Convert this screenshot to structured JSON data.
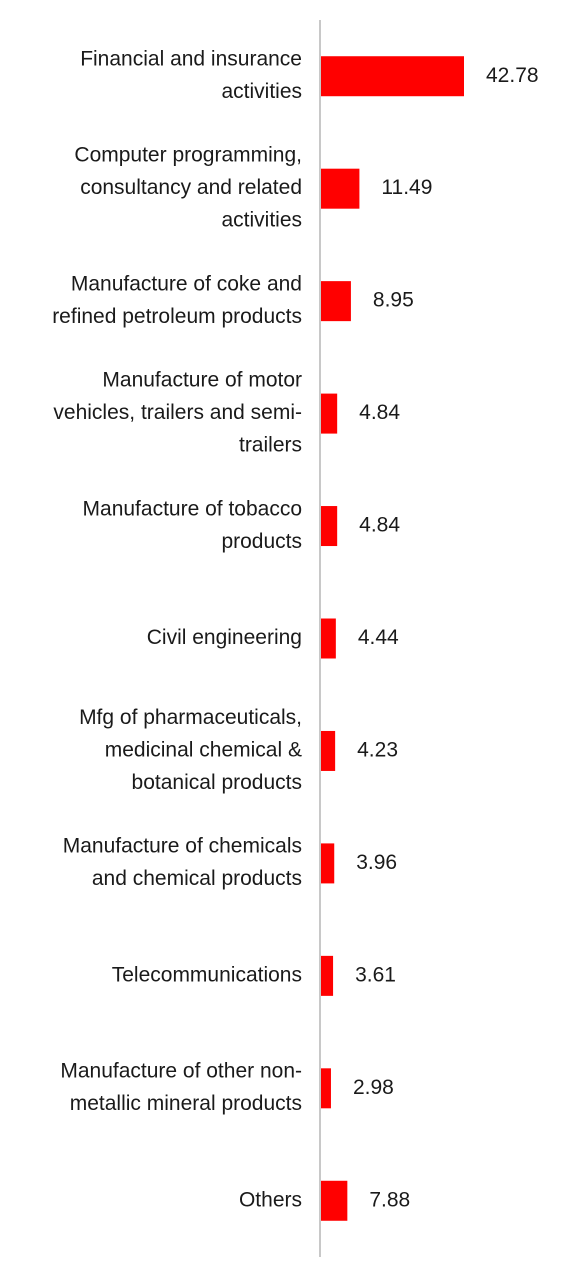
{
  "chart_data": {
    "type": "bar",
    "orientation": "horizontal",
    "categories": [
      [
        "Financial and insurance",
        "activities"
      ],
      [
        "Computer programming,",
        "consultancy and related",
        "activities"
      ],
      [
        "Manufacture of coke and",
        "refined petroleum products"
      ],
      [
        "Manufacture of motor",
        "vehicles, trailers and semi-",
        "trailers"
      ],
      [
        "Manufacture of tobacco",
        "products"
      ],
      [
        "Civil engineering"
      ],
      [
        "Mfg of pharmaceuticals,",
        "medicinal chemical &",
        "botanical products"
      ],
      [
        "Manufacture of chemicals",
        "and chemical products"
      ],
      [
        "Telecommunications"
      ],
      [
        "Manufacture of other non-",
        "metallic mineral products"
      ],
      [
        "Others"
      ]
    ],
    "values": [
      42.78,
      11.49,
      8.95,
      4.84,
      4.84,
      4.44,
      4.23,
      3.96,
      3.61,
      2.98,
      7.88
    ],
    "value_labels": [
      "42.78",
      "11.49",
      "8.95",
      "4.84",
      "4.84",
      "4.44",
      "4.23",
      "3.96",
      "3.61",
      "2.98",
      "7.88"
    ],
    "bar_color": "#ff0000",
    "axis_color": "#c8c8c8",
    "xlim": [
      0,
      45
    ],
    "grid": false,
    "legend": "none",
    "title": "",
    "xlabel": "",
    "ylabel": ""
  }
}
